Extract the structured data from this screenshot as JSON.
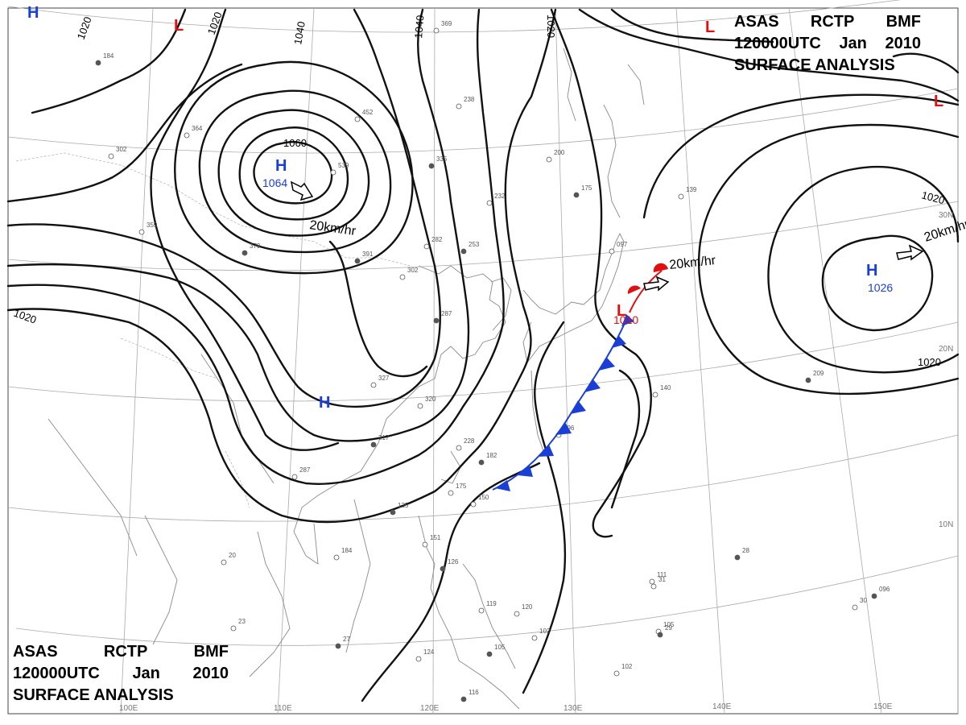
{
  "title": {
    "agency": [
      "ASAS",
      "RCTP",
      "BMF"
    ],
    "time": [
      "120000UTC",
      "Jan",
      "2010"
    ],
    "product": "SURFACE ANALYSIS"
  },
  "pressure_systems": [
    {
      "id": "high-siberia",
      "type": "H",
      "value": "1064",
      "color": "#1a3fd6",
      "motion": "20km/hr"
    },
    {
      "id": "high-pacific",
      "type": "H",
      "value": "1026",
      "color": "#1a3fd6",
      "motion": "20km/hr"
    },
    {
      "id": "high-china",
      "type": "H",
      "value": "",
      "color": "#1a3fd6"
    },
    {
      "id": "high-nw-corner",
      "type": "H",
      "value": "",
      "color": "#1a3fd6"
    },
    {
      "id": "low-japan",
      "type": "L",
      "value": "1010",
      "color": "#e01010",
      "motion": "20km/hr"
    },
    {
      "id": "low-north",
      "type": "L",
      "value": "",
      "color": "#e01010"
    },
    {
      "id": "low-ne-1",
      "type": "L",
      "value": "",
      "color": "#e01010"
    },
    {
      "id": "low-ne-2",
      "type": "L",
      "value": "",
      "color": "#e01010"
    }
  ],
  "isobar_labels": [
    "1020",
    "1020",
    "1040",
    "1040",
    "1020",
    "1060",
    "1020",
    "1020",
    "1020"
  ],
  "longitude_labels": [
    "100E",
    "110E",
    "120E",
    "130E",
    "140E",
    "150E"
  ],
  "latitude_labels": [
    "30N",
    "20N",
    "10N"
  ],
  "fronts": [
    {
      "type": "cold",
      "color": "#1a3fd6"
    },
    {
      "type": "warm",
      "color": "#e01010"
    }
  ],
  "station_values": [
    "184",
    "369",
    "238",
    "335",
    "452",
    "539",
    "391",
    "302",
    "282",
    "253",
    "232",
    "200",
    "175",
    "139",
    "097",
    "287",
    "327",
    "320",
    "317",
    "287",
    "228",
    "182",
    "175",
    "150",
    "135",
    "184",
    "151",
    "126",
    "119",
    "120",
    "105",
    "102",
    "124",
    "116",
    "140",
    "111",
    "096",
    "105",
    "102",
    "209",
    "096",
    "364",
    "379",
    "359",
    "302",
    "28",
    "20",
    "23",
    "27",
    "31",
    "30",
    "29"
  ]
}
